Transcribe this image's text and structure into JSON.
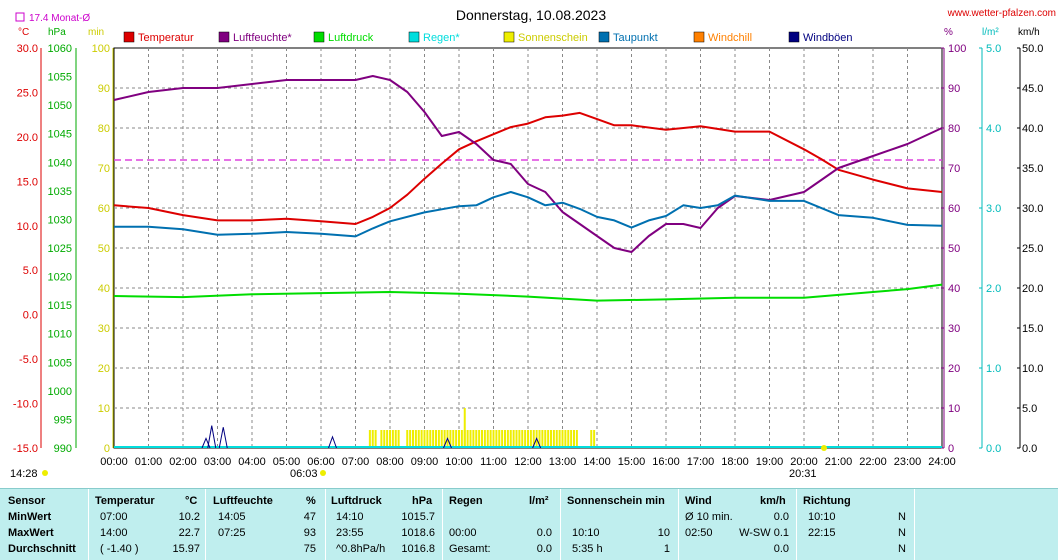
{
  "header": {
    "title": "Donnerstag, 10.08.2023",
    "site": "www.wetter-pfalzen.com",
    "month_avg": "17.4 Monat-Ø",
    "unit_c": "°C",
    "unit_hpa": "hPa",
    "unit_min": "min",
    "unit_pct": "%",
    "unit_lm2": "l/m²",
    "unit_kmh": "km/h"
  },
  "legend": [
    {
      "label": "Temperatur",
      "color": "#dd0000"
    },
    {
      "label": "Luftfeuchte*",
      "color": "#800080"
    },
    {
      "label": "Luftdruck",
      "color": "#00dd00"
    },
    {
      "label": "Regen*",
      "color": "#00dddd"
    },
    {
      "label": "Sonnenschein",
      "color": "#eeee00"
    },
    {
      "label": "Taupunkt",
      "color": "#0070b0"
    },
    {
      "label": "Windchill",
      "color": "#ff8000"
    },
    {
      "label": "Windböen",
      "color": "#000080"
    }
  ],
  "sun": {
    "sunrise_day": "14:28",
    "sunrise": "06:03",
    "sunset": "20:31"
  },
  "chart_data": {
    "type": "line",
    "x_ticks": [
      "00:00",
      "01:00",
      "02:00",
      "03:00",
      "04:00",
      "05:00",
      "06:00",
      "07:00",
      "08:00",
      "09:00",
      "10:00",
      "11:00",
      "12:00",
      "13:00",
      "14:00",
      "15:00",
      "16:00",
      "17:00",
      "18:00",
      "19:00",
      "20:00",
      "21:00",
      "22:00",
      "23:00",
      "24:00"
    ],
    "axes": {
      "temp": {
        "ticks": [
          "30.0",
          "25.0",
          "20.0",
          "15.0",
          "10.0",
          "5.0",
          "0.0",
          "-5.0",
          "-10.0",
          "-15.0"
        ],
        "range": [
          -15,
          30
        ]
      },
      "pressure": {
        "ticks": [
          "1060",
          "1055",
          "1050",
          "1045",
          "1040",
          "1035",
          "1030",
          "1025",
          "1020",
          "1015",
          "1010",
          "1005",
          "1000",
          "995",
          "990"
        ],
        "range": [
          990,
          1060
        ]
      },
      "sun_min": {
        "ticks": [
          "100",
          "90",
          "80",
          "70",
          "60",
          "50",
          "40",
          "30",
          "20",
          "10",
          "0"
        ],
        "range": [
          0,
          100
        ]
      },
      "humidity": {
        "ticks": [
          "100",
          "90",
          "80",
          "70",
          "60",
          "50",
          "40",
          "30",
          "20",
          "10",
          "0"
        ],
        "range": [
          0,
          100
        ]
      },
      "rain": {
        "ticks": [
          "5.0",
          "4.0",
          "3.0",
          "2.0",
          "1.0",
          "0.0"
        ],
        "range": [
          0,
          5
        ]
      },
      "wind": {
        "ticks": [
          "50.0",
          "45.0",
          "40.0",
          "35.0",
          "30.0",
          "25.0",
          "20.0",
          "15.0",
          "10.0",
          "5.0",
          "0.0"
        ],
        "range": [
          0,
          50
        ]
      }
    },
    "month_avg_temp": 17.4,
    "series": [
      {
        "name": "Temperatur",
        "axis": "temp",
        "color": "#dd0000",
        "x": [
          0,
          1,
          2,
          3,
          4,
          5,
          6,
          7,
          7.5,
          8,
          8.5,
          9,
          9.5,
          10,
          10.5,
          11,
          11.5,
          12,
          12.5,
          13,
          13.5,
          14,
          14.5,
          15,
          16,
          17,
          18,
          19,
          20,
          20.5,
          21,
          22,
          23,
          24
        ],
        "y": [
          12.3,
          12,
          11.2,
          10.6,
          10.6,
          10.8,
          10.5,
          10.2,
          11,
          12,
          13.5,
          15.3,
          17,
          18.6,
          19.5,
          20.3,
          21.1,
          21.5,
          22.2,
          22.4,
          22.7,
          22.0,
          21.3,
          21.3,
          20.8,
          21.2,
          20.6,
          20.6,
          18.6,
          17.5,
          16.3,
          15.2,
          14.2,
          13.8
        ]
      },
      {
        "name": "Luftfeuchte*",
        "axis": "humidity",
        "color": "#800080",
        "x": [
          0,
          1,
          2,
          3,
          4,
          5,
          6,
          7,
          7.5,
          8,
          8.5,
          9,
          9.5,
          10,
          10.5,
          11,
          11.5,
          12,
          12.5,
          13,
          13.5,
          14,
          14.5,
          15,
          15.5,
          16,
          16.5,
          17,
          17.5,
          18,
          19,
          20,
          20.5,
          21,
          22,
          23,
          24
        ],
        "y": [
          87,
          89,
          90,
          90,
          91,
          92,
          92,
          92,
          93,
          92,
          89,
          84,
          78,
          79,
          76,
          72,
          71,
          66,
          64,
          59,
          56,
          53,
          50,
          49,
          53,
          56,
          56,
          55,
          60,
          63,
          62,
          64,
          67,
          70,
          73,
          76,
          80
        ]
      },
      {
        "name": "Luftdruck",
        "axis": "pressure",
        "color": "#00dd00",
        "x": [
          0,
          2,
          4,
          6,
          8,
          10,
          12,
          14,
          16,
          18,
          19,
          20,
          21,
          22,
          23,
          24
        ],
        "y": [
          1016.6,
          1016.4,
          1016.9,
          1017.1,
          1017.3,
          1017.0,
          1016.5,
          1015.8,
          1016.0,
          1016.3,
          1016.3,
          1016.3,
          1016.8,
          1017.3,
          1017.8,
          1018.6
        ]
      },
      {
        "name": "Taupunkt",
        "axis": "temp",
        "color": "#0070b0",
        "x": [
          0,
          1,
          2,
          3,
          4,
          5,
          6,
          7,
          7.5,
          8,
          9,
          10,
          10.5,
          11,
          11.5,
          12,
          12.5,
          13,
          13.5,
          14,
          14.5,
          15,
          15.5,
          16,
          16.5,
          17,
          17.5,
          18,
          19,
          20,
          21,
          22,
          23,
          24
        ],
        "y": [
          9.9,
          9.9,
          9.6,
          9.0,
          9.1,
          9.3,
          9.1,
          8.8,
          9.7,
          10.5,
          11.5,
          12.2,
          12.3,
          13.2,
          13.8,
          13.2,
          12.3,
          12.6,
          11.9,
          11.0,
          10.6,
          9.8,
          10.6,
          11.1,
          12.3,
          12.0,
          12.3,
          13.4,
          12.8,
          12.8,
          11.2,
          10.9,
          10.1,
          10.0
        ]
      }
    ],
    "sunshine_bars": {
      "axis": "sun_min",
      "ranges": [
        [
          "07:25",
          "07:35"
        ],
        [
          "07:45",
          "08:15"
        ],
        [
          "08:30",
          "13:30"
        ],
        [
          "13:50",
          "14:00"
        ]
      ],
      "peak_value": 10,
      "peak_time": "10:10"
    },
    "wind_gusts": {
      "axis": "wind",
      "times": [
        "02:40",
        "02:50",
        "03:10",
        "06:20",
        "09:40",
        "12:15"
      ],
      "values": [
        1.2,
        2.8,
        2.6,
        1.4,
        1.2,
        1.2
      ]
    },
    "rain_total": 0.0
  },
  "table": {
    "headers": {
      "sensor": "Sensor",
      "temp": "Temperatur",
      "temp_unit": "°C",
      "hum": "Luftfeuchte",
      "hum_unit": "%",
      "press": "Luftdruck",
      "press_unit": "hPa",
      "rain": "Regen",
      "rain_unit": "l/m²",
      "sun": "Sonnenschein min",
      "wind": "Wind",
      "wind_unit": "km/h",
      "dir": "Richtung"
    },
    "rows": [
      {
        "label": "MinWert",
        "temp_time": "07:00",
        "temp_val": "10.2",
        "hum_time": "14:05",
        "hum_val": "47",
        "press_time": "14:10",
        "press_val": "1015.7",
        "rain_time": "",
        "rain_val": "",
        "sun_time": "",
        "sun_val": "",
        "wind_time": "Ø 10 min.",
        "wind_val": "0.0",
        "dir_time": "10:10",
        "dir_val": "N"
      },
      {
        "label": "MaxWert",
        "temp_time": "14:00",
        "temp_val": "22.7",
        "hum_time": "07:25",
        "hum_val": "93",
        "press_time": "23:55",
        "press_val": "1018.6",
        "rain_time": "00:00",
        "rain_val": "0.0",
        "sun_time": "10:10",
        "sun_val": "10",
        "wind_time": "02:50",
        "wind_val": "W-SW 0.1",
        "dir_time": "22:15",
        "dir_val": "N"
      },
      {
        "label": "Durchschnitt",
        "temp_time": "( -1.40 )",
        "temp_val": "15.97",
        "hum_time": "",
        "hum_val": "75",
        "press_time": "^0.8hPa/h",
        "press_val": "1016.8",
        "rain_time": "Gesamt:",
        "rain_val": "0.0",
        "sun_time": "5:35 h",
        "sun_val": "1",
        "wind_time": "",
        "wind_val": "0.0",
        "dir_time": "",
        "dir_val": "N"
      }
    ]
  }
}
